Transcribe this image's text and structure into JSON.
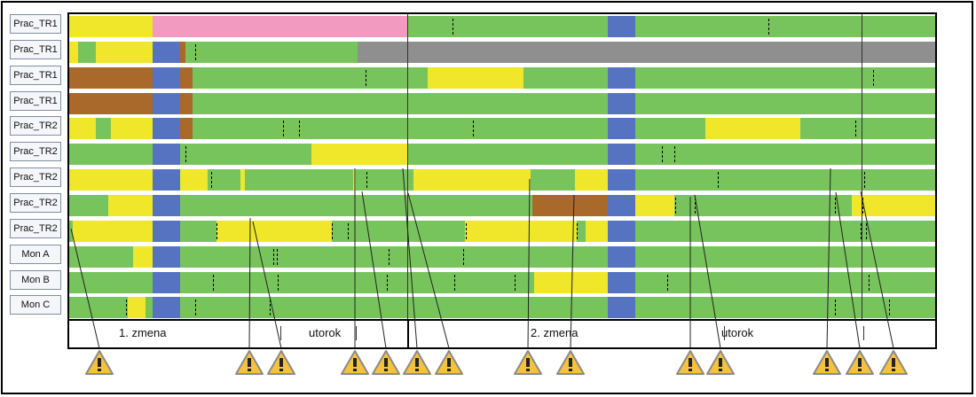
{
  "colors": {
    "green": "#78c45c",
    "yellow": "#f0e62a",
    "blue": "#5673c2",
    "brown": "#a9692a",
    "pink": "#f39ac0",
    "gray": "#8f8f8f",
    "warning_fill": "#f5c33b"
  },
  "rows": [
    {
      "label": "Prac_TR1"
    },
    {
      "label": "Prac_TR1"
    },
    {
      "label": "Prac_TR1"
    },
    {
      "label": "Prac_TR1"
    },
    {
      "label": "Prac_TR2"
    },
    {
      "label": "Prac_TR2"
    },
    {
      "label": "Prac_TR2"
    },
    {
      "label": "Prac_TR2"
    },
    {
      "label": "Prac_TR2"
    },
    {
      "label": "Mon A"
    },
    {
      "label": "Mon B"
    },
    {
      "label": "Mon C"
    }
  ],
  "timeline": {
    "shift1": "1. zmena",
    "day1": "utorok",
    "shift2": "2. zmena",
    "day2": "utorok"
  },
  "warning_icon": "warning-triangle-icon",
  "warning_count": 14
}
